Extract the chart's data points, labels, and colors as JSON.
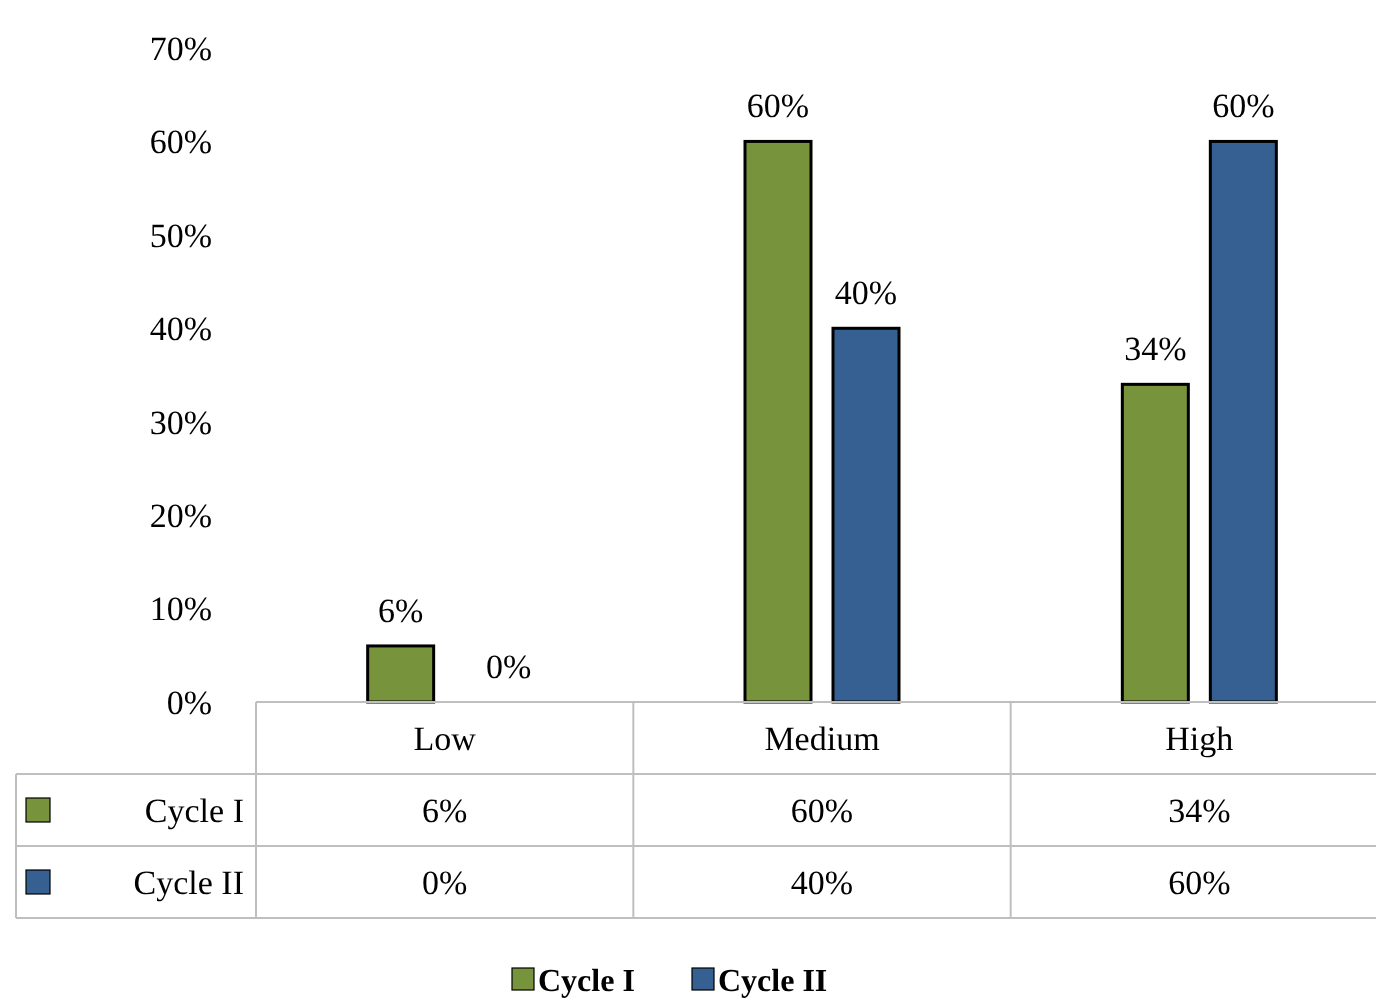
{
  "chart_data": {
    "type": "bar",
    "categories": [
      "Low",
      "Medium",
      "High"
    ],
    "series": [
      {
        "name": "Cycle I",
        "color": "#77933c",
        "values": [
          6,
          60,
          34
        ],
        "value_labels": [
          "6%",
          "60%",
          "34%"
        ]
      },
      {
        "name": "Cycle II",
        "color": "#376092",
        "values": [
          0,
          40,
          60
        ],
        "value_labels": [
          "0%",
          "40%",
          "60%"
        ]
      }
    ],
    "ylim": [
      0,
      70
    ],
    "yticks": [
      {
        "value": 0,
        "label": "0%"
      },
      {
        "value": 10,
        "label": "10%"
      },
      {
        "value": 20,
        "label": "20%"
      },
      {
        "value": 30,
        "label": "30%"
      },
      {
        "value": 40,
        "label": "40%"
      },
      {
        "value": 50,
        "label": "50%"
      },
      {
        "value": 60,
        "label": "60%"
      },
      {
        "value": 70,
        "label": "70%"
      }
    ],
    "grid": false,
    "legend": "bottom"
  }
}
